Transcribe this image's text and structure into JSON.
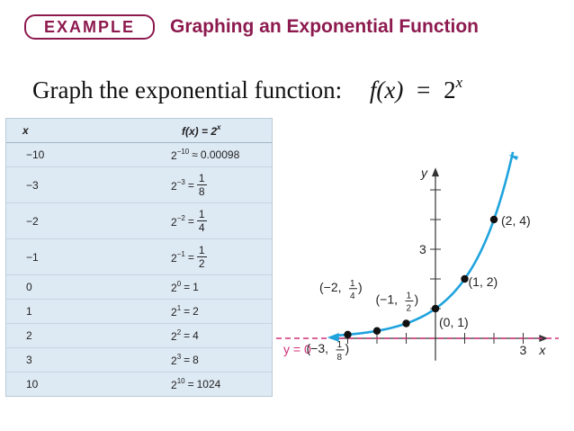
{
  "header": {
    "example_label": "EXAMPLE",
    "title": "Graphing an Exponential Function"
  },
  "prompt": {
    "text": "Graph the exponential function:",
    "lhs": "f(x)",
    "eq": "=",
    "base": "2",
    "exp": "x"
  },
  "table": {
    "col_x": "x",
    "col_fx": "f(x) = 2",
    "col_fx_exp": "x",
    "rows": [
      {
        "x": "−10",
        "base": "2",
        "exp": "−10",
        "rel": "≈",
        "val": "0.00098",
        "frac": false
      },
      {
        "x": "−3",
        "base": "2",
        "exp": "−3",
        "rel": "=",
        "num": "1",
        "den": "8",
        "frac": true
      },
      {
        "x": "−2",
        "base": "2",
        "exp": "−2",
        "rel": "=",
        "num": "1",
        "den": "4",
        "frac": true
      },
      {
        "x": "−1",
        "base": "2",
        "exp": "−1",
        "rel": "=",
        "num": "1",
        "den": "2",
        "frac": true
      },
      {
        "x": "0",
        "base": "2",
        "exp": "0",
        "rel": "=",
        "val": "1",
        "frac": false
      },
      {
        "x": "1",
        "base": "2",
        "exp": "1",
        "rel": "=",
        "val": "2",
        "frac": false
      },
      {
        "x": "2",
        "base": "2",
        "exp": "2",
        "rel": "=",
        "val": "4",
        "frac": false
      },
      {
        "x": "3",
        "base": "2",
        "exp": "3",
        "rel": "=",
        "val": "8",
        "frac": false
      },
      {
        "x": "10",
        "base": "2",
        "exp": "10",
        "rel": "=",
        "val": "1024",
        "frac": false
      }
    ]
  },
  "chart_data": {
    "type": "line",
    "xlabel": "x",
    "ylabel": "y",
    "xlim": [
      -4,
      4
    ],
    "ylim": [
      -1,
      6
    ],
    "tick_labels": {
      "x": [
        "3"
      ],
      "y": [
        "3"
      ]
    },
    "asymptote_label": "y = 0",
    "series": [
      {
        "x": [
          -3,
          -2,
          -1,
          0,
          1,
          2
        ],
        "y": [
          0.125,
          0.25,
          0.5,
          1,
          2,
          4
        ]
      }
    ],
    "point_labels": [
      {
        "x": -3,
        "y": 0.125,
        "pre": "(−3, ",
        "num": "1",
        "den": "8",
        "post": ")",
        "frac": true
      },
      {
        "x": -2,
        "y": 0.25,
        "pre": "(−2, ",
        "num": "1",
        "den": "4",
        "post": ")",
        "frac": true
      },
      {
        "x": -1,
        "y": 0.5,
        "pre": "(−1, ",
        "num": "1",
        "den": "2",
        "post": ")",
        "frac": true
      },
      {
        "x": 0,
        "y": 1,
        "text": "(0, 1)",
        "frac": false
      },
      {
        "x": 1,
        "y": 2,
        "text": "(1, 2)",
        "frac": false
      },
      {
        "x": 2,
        "y": 4,
        "text": "(2, 4)",
        "frac": false
      }
    ],
    "colors": {
      "curve": "#1fa3dd",
      "asymptote": "#d0307a",
      "point": "#111111"
    }
  }
}
